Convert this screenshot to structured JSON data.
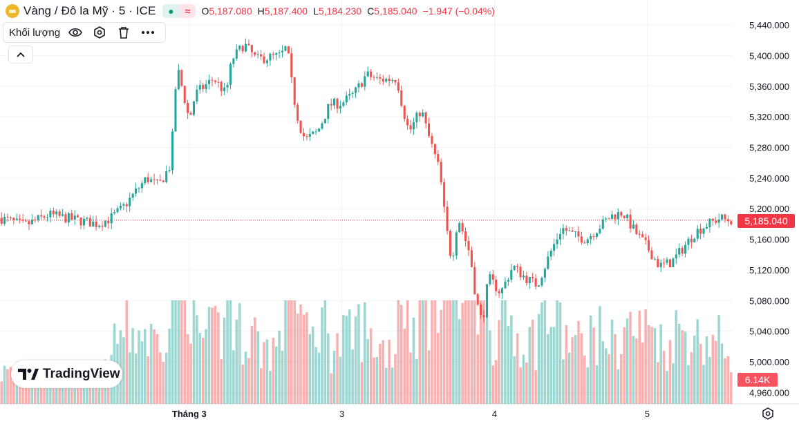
{
  "header": {
    "title": "Vàng / Đô la Mỹ · 5 · ICE",
    "status_icon": "dot-icon",
    "replay_icon": "approx-icon",
    "open_key": "O",
    "open": "5,187.080",
    "high_key": "H",
    "high": "5,187.400",
    "low_key": "L",
    "low": "5,184.230",
    "close_key": "C",
    "close": "5,185.040",
    "change": "−1.947 (−0.04%)"
  },
  "volume_indicator": {
    "label": "Khối lượng"
  },
  "logo": {
    "text": "TradingView"
  },
  "colors": {
    "up": "#26a69a",
    "down": "#ef5350",
    "grid": "#f0f3fa",
    "axis_text": "#131722"
  },
  "chart_data": {
    "type": "candlestick",
    "title": "Vàng / Đô la Mỹ · 5 · ICE",
    "ylim": [
      4945,
      5450
    ],
    "y_ticks": [
      "5,440.000",
      "5,400.000",
      "5,360.000",
      "5,320.000",
      "5,280.000",
      "5,240.000",
      "5,200.000",
      "5,160.000",
      "5,120.000",
      "5,080.000",
      "5,040.000",
      "5,000.000",
      "4,960.000"
    ],
    "y_tick_values": [
      5440,
      5400,
      5360,
      5320,
      5280,
      5240,
      5200,
      5160,
      5120,
      5080,
      5040,
      5000,
      4960
    ],
    "x_ticks": [
      "Tháng 3",
      "3",
      "4",
      "5"
    ],
    "x_tick_values": [
      62,
      112,
      162,
      212
    ],
    "x_range": [
      0,
      240
    ],
    "last_price": 5185.04,
    "last_price_label": "5,185.040",
    "last_volume_label": "6.14K",
    "volume_max": 12000,
    "price_path": [
      [
        0,
        5188
      ],
      [
        8,
        5178
      ],
      [
        16,
        5192
      ],
      [
        24,
        5186
      ],
      [
        32,
        5180
      ],
      [
        36,
        5187
      ],
      [
        40,
        5200
      ],
      [
        48,
        5240
      ],
      [
        52,
        5230
      ],
      [
        56,
        5258
      ],
      [
        57,
        5330
      ],
      [
        58,
        5385
      ],
      [
        60,
        5352
      ],
      [
        62,
        5315
      ],
      [
        64,
        5350
      ],
      [
        70,
        5370
      ],
      [
        74,
        5350
      ],
      [
        76,
        5395
      ],
      [
        80,
        5415
      ],
      [
        84,
        5395
      ],
      [
        92,
        5400
      ],
      [
        94,
        5412
      ],
      [
        96,
        5350
      ],
      [
        98,
        5310
      ],
      [
        100,
        5290
      ],
      [
        104,
        5300
      ],
      [
        108,
        5336
      ],
      [
        112,
        5338
      ],
      [
        116,
        5350
      ],
      [
        120,
        5375
      ],
      [
        124,
        5368
      ],
      [
        130,
        5370
      ],
      [
        132,
        5330
      ],
      [
        134,
        5300
      ],
      [
        136,
        5315
      ],
      [
        138,
        5330
      ],
      [
        140,
        5300
      ],
      [
        142,
        5275
      ],
      [
        144,
        5250
      ],
      [
        146,
        5180
      ],
      [
        148,
        5130
      ],
      [
        150,
        5190
      ],
      [
        154,
        5140
      ],
      [
        156,
        5080
      ],
      [
        158,
        5050
      ],
      [
        160,
        5110
      ],
      [
        164,
        5090
      ],
      [
        168,
        5125
      ],
      [
        172,
        5110
      ],
      [
        176,
        5100
      ],
      [
        180,
        5140
      ],
      [
        184,
        5175
      ],
      [
        188,
        5165
      ],
      [
        192,
        5160
      ],
      [
        196,
        5175
      ],
      [
        200,
        5190
      ],
      [
        204,
        5195
      ],
      [
        208,
        5170
      ],
      [
        212,
        5150
      ],
      [
        216,
        5125
      ],
      [
        220,
        5130
      ],
      [
        224,
        5150
      ],
      [
        228,
        5170
      ],
      [
        232,
        5180
      ],
      [
        236,
        5188
      ],
      [
        238,
        5185.04
      ]
    ]
  }
}
